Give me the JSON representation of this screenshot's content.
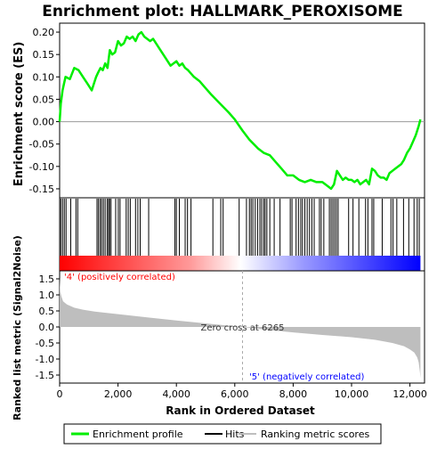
{
  "chart_data": {
    "type": "line",
    "title": "Enrichment plot: HALLMARK_PEROXISOME",
    "colors": {
      "profile": "#00ee00",
      "hits": "#000000",
      "metric_fill": "#bebebe",
      "positive": "#ff0000",
      "negative": "#0000ff",
      "zero_line": "#999999"
    },
    "panels": {
      "es": {
        "ylabel": "Enrichment score (ES)",
        "xlim": [
          0,
          12500
        ],
        "ylim": [
          -0.17,
          0.22
        ],
        "y_ticks": [
          -0.15,
          -0.1,
          -0.05,
          0.0,
          0.05,
          0.1,
          0.15,
          0.2
        ],
        "y_tick_labels": [
          "-0.15",
          "-0.10",
          "-0.05",
          "0.00",
          "0.05",
          "0.10",
          "0.15",
          "0.20"
        ],
        "x_ticks": [
          0,
          2000,
          4000,
          6000,
          8000,
          10000,
          12000
        ],
        "series": [
          {
            "name": "Enrichment profile",
            "x": [
              0,
              40,
              100,
              200,
              350,
              500,
              650,
              800,
              950,
              1100,
              1250,
              1320,
              1400,
              1480,
              1560,
              1640,
              1720,
              1800,
              1900,
              2000,
              2100,
              2200,
              2300,
              2400,
              2500,
              2600,
              2700,
              2800,
              2900,
              3000,
              3100,
              3200,
              3400,
              3600,
              3800,
              3900,
              4000,
              4100,
              4200,
              4300,
              4400,
              4600,
              4800,
              5000,
              5200,
              5500,
              5800,
              6000,
              6265,
              6500,
              6800,
              7000,
              7200,
              7400,
              7600,
              7800,
              8000,
              8200,
              8400,
              8600,
              8800,
              9000,
              9100,
              9200,
              9300,
              9400,
              9500,
              9600,
              9700,
              9800,
              9900,
              10000,
              10100,
              10200,
              10300,
              10400,
              10500,
              10600,
              10700,
              10800,
              10900,
              11000,
              11100,
              11200,
              11300,
              11400,
              11500,
              11600,
              11700,
              11800,
              11900,
              12000,
              12100,
              12200,
              12300,
              12360
            ],
            "y": [
              0.0,
              0.04,
              0.07,
              0.1,
              0.095,
              0.12,
              0.115,
              0.1,
              0.085,
              0.07,
              0.1,
              0.11,
              0.12,
              0.115,
              0.13,
              0.12,
              0.16,
              0.15,
              0.155,
              0.18,
              0.17,
              0.175,
              0.19,
              0.185,
              0.19,
              0.18,
              0.195,
              0.2,
              0.19,
              0.185,
              0.18,
              0.185,
              0.165,
              0.145,
              0.125,
              0.13,
              0.135,
              0.125,
              0.13,
              0.12,
              0.115,
              0.1,
              0.09,
              0.075,
              0.06,
              0.04,
              0.02,
              0.005,
              -0.02,
              -0.04,
              -0.06,
              -0.07,
              -0.075,
              -0.09,
              -0.105,
              -0.12,
              -0.12,
              -0.13,
              -0.135,
              -0.13,
              -0.135,
              -0.135,
              -0.14,
              -0.145,
              -0.15,
              -0.14,
              -0.11,
              -0.12,
              -0.13,
              -0.125,
              -0.13,
              -0.13,
              -0.135,
              -0.13,
              -0.14,
              -0.135,
              -0.13,
              -0.14,
              -0.105,
              -0.11,
              -0.12,
              -0.125,
              -0.125,
              -0.13,
              -0.115,
              -0.11,
              -0.105,
              -0.1,
              -0.095,
              -0.085,
              -0.07,
              -0.06,
              -0.045,
              -0.03,
              -0.01,
              0.005
            ]
          }
        ]
      },
      "hits": {
        "positions": [
          40,
          100,
          160,
          220,
          380,
          560,
          620,
          1280,
          1330,
          1390,
          1440,
          1500,
          1560,
          1630,
          1680,
          1710,
          1760,
          1920,
          2010,
          2070,
          2280,
          2350,
          2420,
          2600,
          2680,
          2760,
          3050,
          3950,
          4000,
          4100,
          4300,
          4380,
          4500,
          5250,
          5520,
          5600,
          6150,
          6400,
          6500,
          6560,
          6620,
          6700,
          6780,
          6860,
          6920,
          6990,
          7040,
          7100,
          7200,
          7350,
          7550,
          7900,
          7960,
          8100,
          8180,
          8260,
          8320,
          8400,
          8480,
          8560,
          8640,
          8720,
          8900,
          8960,
          9050,
          9240,
          9300,
          9360,
          9420,
          9480,
          9540,
          9900,
          10050,
          10250,
          10480,
          10560,
          10700,
          10760,
          11050,
          11350,
          11420,
          11550,
          11780,
          11960,
          12140,
          12250,
          12320
        ]
      },
      "metric": {
        "ylabel": "Ranked list metric (Signal2Noise)",
        "xlabel": "Rank in Ordered Dataset",
        "ylim": [
          -1.75,
          1.75
        ],
        "y_ticks": [
          -1.5,
          -1.0,
          -0.5,
          0.0,
          0.5,
          1.0,
          1.5
        ],
        "y_tick_labels": [
          "-1.5",
          "-1.0",
          "-0.5",
          "0.0",
          "0.5",
          "1.0",
          "1.5"
        ],
        "x_ticks": [
          0,
          2000,
          4000,
          6000,
          8000,
          10000,
          12000
        ],
        "x_tick_labels": [
          "0",
          "2,000",
          "4,000",
          "6,000",
          "8,000",
          "10,000",
          "12,000"
        ],
        "x": [
          0,
          20,
          60,
          120,
          250,
          500,
          800,
          1200,
          2000,
          3000,
          4000,
          5000,
          6265,
          7000,
          8000,
          9000,
          10000,
          10800,
          11400,
          11800,
          12000,
          12150,
          12250,
          12300,
          12340,
          12360
        ],
        "values": [
          1.55,
          1.1,
          0.95,
          0.8,
          0.7,
          0.6,
          0.54,
          0.48,
          0.4,
          0.3,
          0.2,
          0.11,
          0.0,
          -0.08,
          -0.17,
          -0.25,
          -0.32,
          -0.4,
          -0.5,
          -0.6,
          -0.7,
          -0.8,
          -0.95,
          -1.1,
          -1.4,
          -1.6
        ],
        "zero_cross_label": "Zero cross at 6265",
        "zero_cross": 6265,
        "positive_label": "'4' (positively correlated)",
        "negative_label": "'5' (negatively correlated)"
      }
    },
    "legend": {
      "placement": "bottom",
      "items": [
        {
          "label": "Enrichment profile",
          "color": "#00ee00"
        },
        {
          "label": "Hits",
          "color": "#000000"
        },
        {
          "label": "Ranking metric scores",
          "color": "#bebebe"
        }
      ]
    }
  }
}
